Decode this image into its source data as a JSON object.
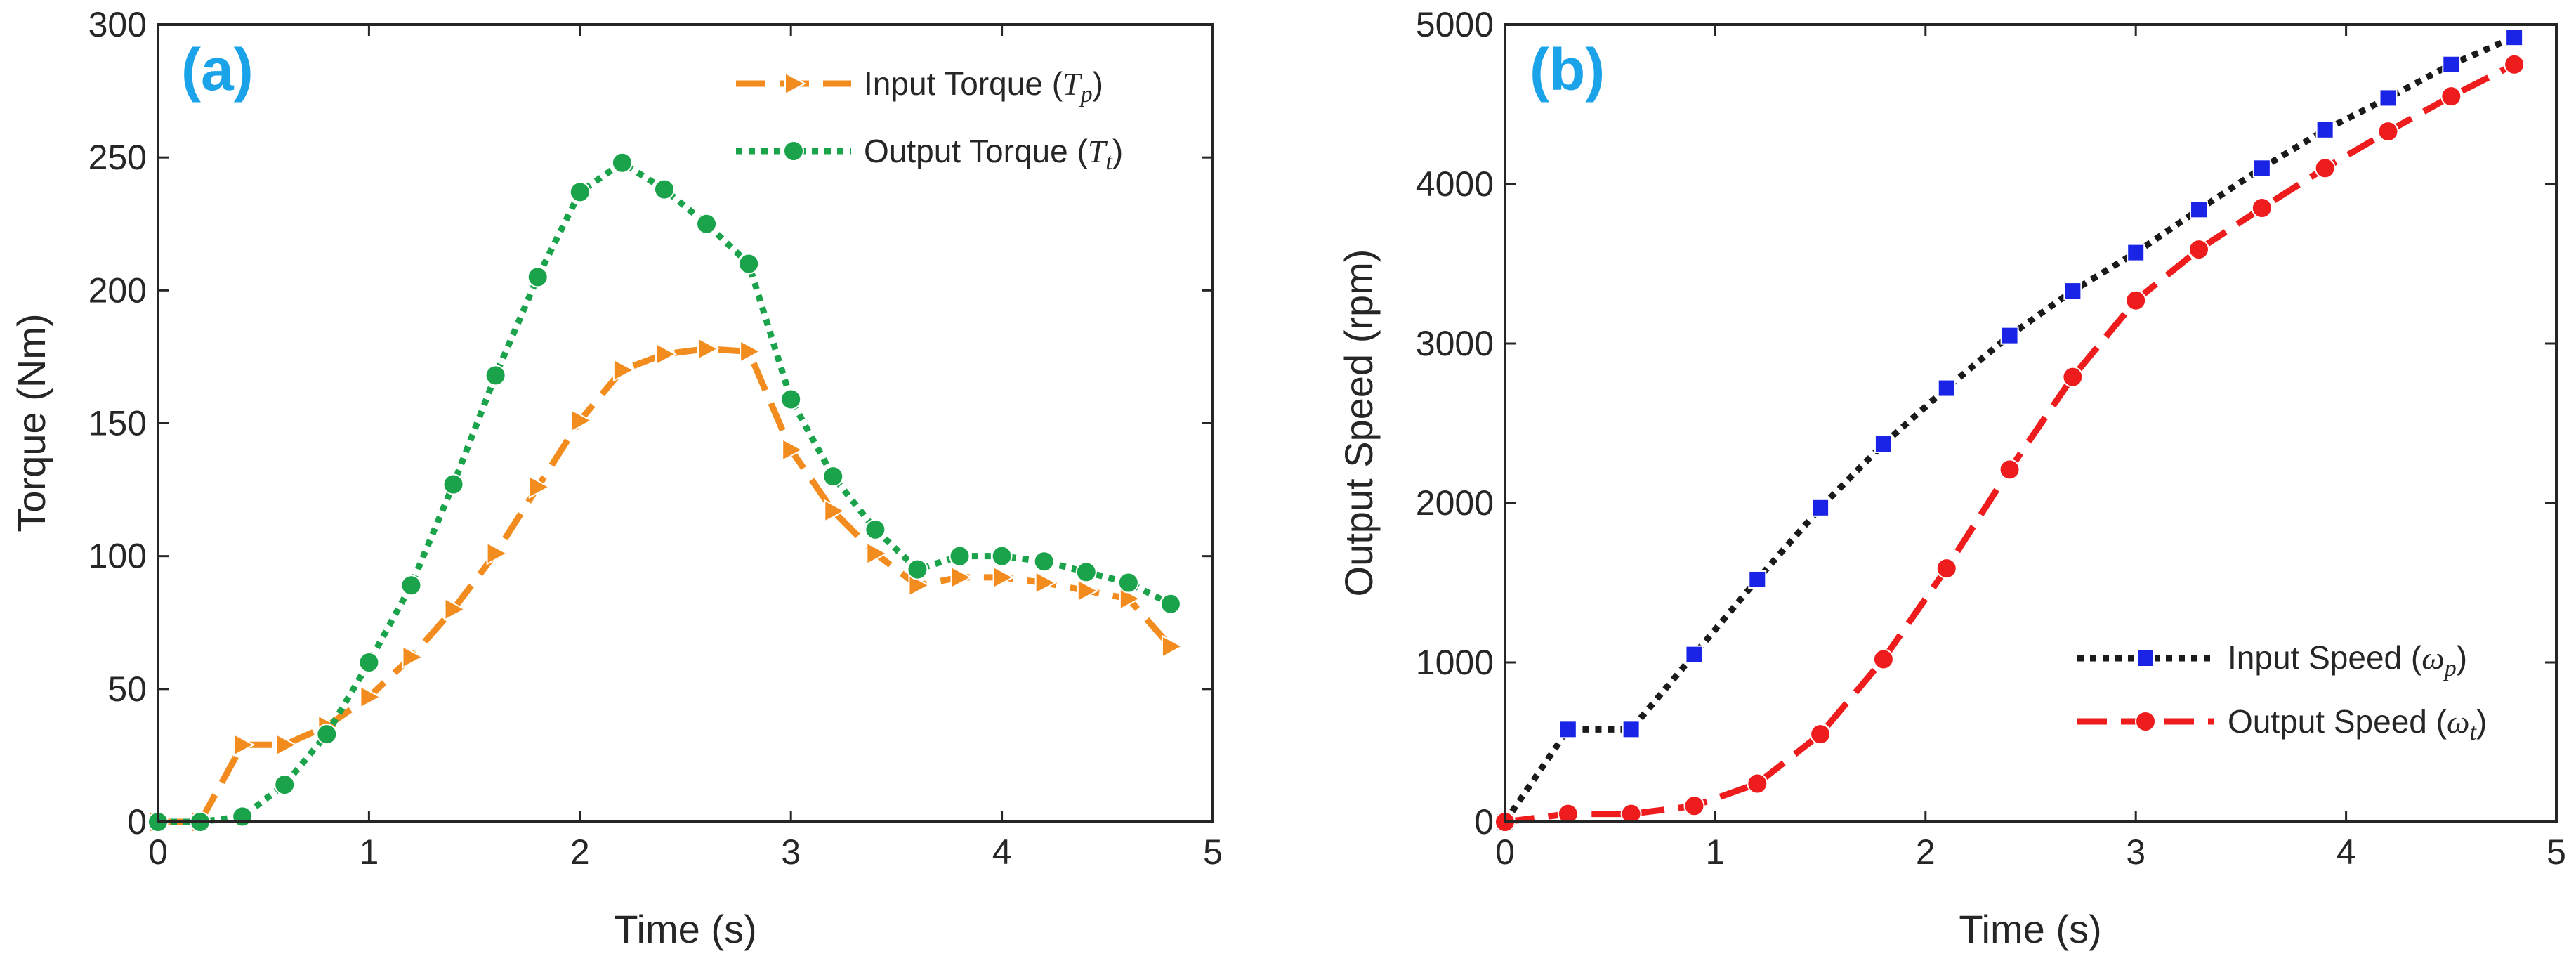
{
  "chart_data": [
    {
      "type": "line",
      "panel": "(a)",
      "title": "",
      "xlabel": "Time (s)",
      "ylabel": "Torque (Nm)",
      "xlim": [
        0,
        5
      ],
      "ylim": [
        0,
        300
      ],
      "xticks": [
        0,
        1,
        2,
        3,
        4,
        5
      ],
      "yticks": [
        0,
        50,
        100,
        150,
        200,
        250,
        300
      ],
      "grid": false,
      "legend_position": "top-right",
      "series": [
        {
          "label": "Input Torque",
          "symbol": "T",
          "subscript": "p",
          "color": "#f28c1e",
          "line_style": "dashed",
          "marker": "right-triangle",
          "points": [
            [
              0,
              0
            ],
            [
              0.2,
              0
            ],
            [
              0.4,
              29
            ],
            [
              0.6,
              29
            ],
            [
              0.8,
              36
            ],
            [
              1.0,
              47
            ],
            [
              1.2,
              62
            ],
            [
              1.4,
              80
            ],
            [
              1.6,
              101
            ],
            [
              1.8,
              126
            ],
            [
              2.0,
              151
            ],
            [
              2.2,
              170
            ],
            [
              2.4,
              176
            ],
            [
              2.6,
              178
            ],
            [
              2.8,
              177
            ],
            [
              3.0,
              140
            ],
            [
              3.2,
              117
            ],
            [
              3.4,
              101
            ],
            [
              3.6,
              89
            ],
            [
              3.8,
              92
            ],
            [
              4.0,
              92
            ],
            [
              4.2,
              90
            ],
            [
              4.4,
              87
            ],
            [
              4.6,
              84
            ],
            [
              4.8,
              66
            ]
          ]
        },
        {
          "label": "Output Torque",
          "symbol": "T",
          "subscript": "t",
          "color": "#1aa34a",
          "line_style": "dotted",
          "marker": "circle",
          "points": [
            [
              0,
              0
            ],
            [
              0.2,
              0
            ],
            [
              0.4,
              2
            ],
            [
              0.6,
              14
            ],
            [
              0.8,
              33
            ],
            [
              1.0,
              60
            ],
            [
              1.2,
              89
            ],
            [
              1.4,
              127
            ],
            [
              1.6,
              168
            ],
            [
              1.8,
              205
            ],
            [
              2.0,
              237
            ],
            [
              2.2,
              248
            ],
            [
              2.4,
              238
            ],
            [
              2.6,
              225
            ],
            [
              2.8,
              210
            ],
            [
              3.0,
              159
            ],
            [
              3.2,
              130
            ],
            [
              3.4,
              110
            ],
            [
              3.6,
              95
            ],
            [
              3.8,
              100
            ],
            [
              4.0,
              100
            ],
            [
              4.2,
              98
            ],
            [
              4.4,
              94
            ],
            [
              4.6,
              90
            ],
            [
              4.8,
              82
            ]
          ]
        }
      ]
    },
    {
      "type": "line",
      "panel": "(b)",
      "title": "",
      "xlabel": "Time (s)",
      "ylabel": "Output Speed (rpm)",
      "xlim": [
        0,
        5
      ],
      "ylim": [
        0,
        5000
      ],
      "xticks": [
        0,
        1,
        2,
        3,
        4,
        5
      ],
      "yticks": [
        0,
        1000,
        2000,
        3000,
        4000,
        5000
      ],
      "grid": false,
      "legend_position": "bottom-right",
      "series": [
        {
          "label": "Input Speed",
          "symbol": "ω",
          "subscript": "p",
          "color": "#1a1a1a",
          "marker_color": "#1a24e6",
          "line_style": "dotted",
          "marker": "square",
          "points": [
            [
              0,
              0
            ],
            [
              0.3,
              580
            ],
            [
              0.6,
              580
            ],
            [
              0.9,
              1050
            ],
            [
              1.2,
              1520
            ],
            [
              1.5,
              1970
            ],
            [
              1.8,
              2370
            ],
            [
              2.1,
              2720
            ],
            [
              2.4,
              3050
            ],
            [
              2.7,
              3330
            ],
            [
              3.0,
              3570
            ],
            [
              3.3,
              3840
            ],
            [
              3.6,
              4100
            ],
            [
              3.9,
              4340
            ],
            [
              4.2,
              4540
            ],
            [
              4.5,
              4750
            ],
            [
              4.8,
              4920
            ]
          ]
        },
        {
          "label": "Output Speed",
          "symbol": "ω",
          "subscript": "t",
          "color": "#ee1c1c",
          "line_style": "dashed",
          "marker": "circle",
          "points": [
            [
              0,
              0
            ],
            [
              0.3,
              50
            ],
            [
              0.6,
              50
            ],
            [
              0.9,
              100
            ],
            [
              1.2,
              240
            ],
            [
              1.5,
              550
            ],
            [
              1.8,
              1020
            ],
            [
              2.1,
              1590
            ],
            [
              2.4,
              2210
            ],
            [
              2.7,
              2790
            ],
            [
              3.0,
              3270
            ],
            [
              3.3,
              3590
            ],
            [
              3.6,
              3850
            ],
            [
              3.9,
              4100
            ],
            [
              4.2,
              4330
            ],
            [
              4.5,
              4550
            ],
            [
              4.8,
              4750
            ]
          ]
        }
      ]
    }
  ]
}
